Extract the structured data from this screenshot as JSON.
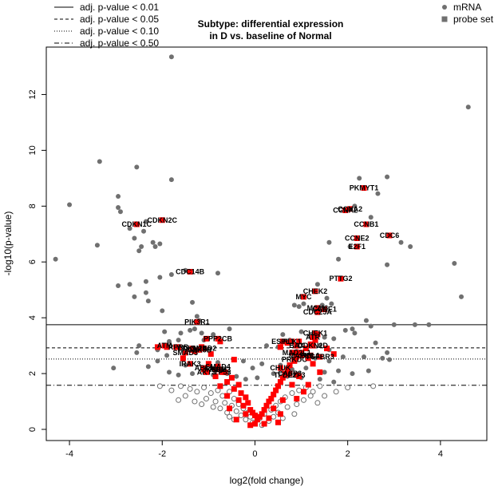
{
  "chart_data": {
    "type": "scatter",
    "title": [
      "Subtype: differential expression",
      "in D vs. baseline of Normal"
    ],
    "xlabel": "log2(fold change)",
    "ylabel": "-log10(p-value)",
    "xlim": [
      -4.5,
      5
    ],
    "ylim": [
      -0.4,
      13.7
    ],
    "xticks": [
      -4,
      -2,
      0,
      2,
      4
    ],
    "yticks": [
      0,
      2,
      4,
      6,
      8,
      10,
      12
    ],
    "grid": false,
    "colors": {
      "mrna": "#707070",
      "probe": "#ff0000",
      "hollow": "#707070"
    },
    "threshold_lines": [
      {
        "label": "adj. p-value < 0.01",
        "y": 3.75,
        "style": "solid"
      },
      {
        "label": "adj. p-value < 0.05",
        "y": 2.92,
        "style": "dashed"
      },
      {
        "label": "adj. p-value < 0.10",
        "y": 2.52,
        "style": "dotted"
      },
      {
        "label": "adj. p-value < 0.50",
        "y": 1.58,
        "style": "dashdot"
      }
    ],
    "marker_legend": [
      {
        "label": "mRNA",
        "shape": "circle"
      },
      {
        "label": "probe set",
        "shape": "square"
      }
    ],
    "mrna_points": [
      [
        -1.8,
        13.35
      ],
      [
        4.6,
        11.55
      ],
      [
        -3.35,
        9.6
      ],
      [
        -2.55,
        9.4
      ],
      [
        2.85,
        9.05
      ],
      [
        -1.8,
        8.95
      ],
      [
        2.25,
        9.0
      ],
      [
        -2.95,
        8.35
      ],
      [
        -4.0,
        8.05
      ],
      [
        -2.95,
        7.95
      ],
      [
        -2.9,
        7.8
      ],
      [
        2.65,
        8.45
      ],
      [
        2.15,
        8.0
      ],
      [
        2.5,
        7.6
      ],
      [
        -2.35,
        7.45
      ],
      [
        -2.7,
        7.2
      ],
      [
        -2.4,
        7.1
      ],
      [
        -2.6,
        6.85
      ],
      [
        -2.2,
        6.7
      ],
      [
        -2.05,
        6.65
      ],
      [
        -2.45,
        6.55
      ],
      [
        -3.4,
        6.6
      ],
      [
        -2.15,
        6.55
      ],
      [
        -2.5,
        6.4
      ],
      [
        -4.3,
        6.1
      ],
      [
        3.15,
        6.7
      ],
      [
        3.35,
        6.55
      ],
      [
        1.6,
        6.7
      ],
      [
        2.05,
        6.55
      ],
      [
        2.85,
        5.9
      ],
      [
        4.3,
        5.95
      ],
      [
        1.8,
        6.1
      ],
      [
        -1.5,
        5.7
      ],
      [
        -1.8,
        5.55
      ],
      [
        -0.8,
        5.6
      ],
      [
        -2.05,
        5.45
      ],
      [
        -2.35,
        5.3
      ],
      [
        -2.7,
        5.2
      ],
      [
        -2.95,
        5.15
      ],
      [
        -2.35,
        4.9
      ],
      [
        -2.6,
        4.75
      ],
      [
        -2.3,
        4.6
      ],
      [
        -1.35,
        4.55
      ],
      [
        1.35,
        5.2
      ],
      [
        1.55,
        4.7
      ],
      [
        1.05,
        4.5
      ],
      [
        0.85,
        4.45
      ],
      [
        0.95,
        4.4
      ],
      [
        1.65,
        4.5
      ],
      [
        1.45,
        4.45
      ],
      [
        -2.0,
        4.25
      ],
      [
        -1.25,
        4.05
      ],
      [
        -1.2,
        3.9
      ],
      [
        4.45,
        4.75
      ],
      [
        2.4,
        3.9
      ],
      [
        3.0,
        3.75
      ],
      [
        3.75,
        3.75
      ],
      [
        1.95,
        3.55
      ],
      [
        2.15,
        3.45
      ],
      [
        2.5,
        3.7
      ],
      [
        2.1,
        3.6
      ],
      [
        -1.95,
        3.5
      ],
      [
        -1.6,
        3.45
      ],
      [
        -1.4,
        3.55
      ],
      [
        -1.3,
        3.6
      ],
      [
        -1.15,
        3.45
      ],
      [
        -0.55,
        3.6
      ],
      [
        -0.9,
        3.4
      ],
      [
        -1.1,
        3.2
      ],
      [
        -1.65,
        3.2
      ],
      [
        -1.85,
        3.15
      ],
      [
        -2.5,
        3.0
      ],
      [
        -2.1,
        2.85
      ],
      [
        -2.55,
        2.75
      ],
      [
        -1.9,
        2.65
      ],
      [
        -2.1,
        2.45
      ],
      [
        -1.55,
        2.5
      ],
      [
        -0.8,
        2.4
      ],
      [
        -3.05,
        2.2
      ],
      [
        -2.3,
        2.25
      ],
      [
        -1.5,
        2.3
      ],
      [
        -1.85,
        2.05
      ],
      [
        -1.65,
        1.95
      ],
      [
        -1.35,
        2.0
      ],
      [
        -0.9,
        1.95
      ],
      [
        -0.6,
        2.0
      ],
      [
        -0.4,
        1.9
      ],
      [
        -0.2,
        1.8
      ],
      [
        0.25,
        3.0
      ],
      [
        0.5,
        2.95
      ],
      [
        0.6,
        3.4
      ],
      [
        0.75,
        3.2
      ],
      [
        1.0,
        3.5
      ],
      [
        1.2,
        3.35
      ],
      [
        1.5,
        3.3
      ],
      [
        1.7,
        3.25
      ],
      [
        1.4,
        3.0
      ],
      [
        1.6,
        2.85
      ],
      [
        0.9,
        2.8
      ],
      [
        1.05,
        2.65
      ],
      [
        1.3,
        2.55
      ],
      [
        1.6,
        2.45
      ],
      [
        1.9,
        2.6
      ],
      [
        0.55,
        2.3
      ],
      [
        0.8,
        2.15
      ],
      [
        1.1,
        2.2
      ],
      [
        1.5,
        2.05
      ],
      [
        1.8,
        2.1
      ],
      [
        0.4,
        2.0
      ],
      [
        0.7,
        1.9
      ],
      [
        1.0,
        1.85
      ],
      [
        1.4,
        1.8
      ],
      [
        1.7,
        1.7
      ],
      [
        2.35,
        2.6
      ],
      [
        2.6,
        3.1
      ],
      [
        2.85,
        2.75
      ],
      [
        2.9,
        2.5
      ],
      [
        2.75,
        2.55
      ],
      [
        2.45,
        2.1
      ],
      [
        2.1,
        2.0
      ],
      [
        3.45,
        3.75
      ],
      [
        -0.25,
        2.45
      ],
      [
        -0.05,
        2.2
      ],
      [
        0.15,
        2.35
      ],
      [
        0.05,
        1.85
      ]
    ],
    "hollow_points": [
      [
        -1.6,
        1.55
      ],
      [
        -1.4,
        1.45
      ],
      [
        -1.25,
        1.35
      ],
      [
        -1.1,
        1.5
      ],
      [
        -0.95,
        1.3
      ],
      [
        -0.8,
        1.4
      ],
      [
        -0.7,
        1.2
      ],
      [
        -0.55,
        1.35
      ],
      [
        -0.45,
        1.1
      ],
      [
        -1.5,
        1.2
      ],
      [
        -1.3,
        1.0
      ],
      [
        -1.05,
        1.1
      ],
      [
        -0.85,
        1.0
      ],
      [
        -0.65,
        0.95
      ],
      [
        -0.5,
        0.85
      ],
      [
        -0.35,
        0.9
      ],
      [
        -0.25,
        0.75
      ],
      [
        -0.4,
        0.65
      ],
      [
        -0.15,
        0.6
      ],
      [
        -0.3,
        0.5
      ],
      [
        -0.1,
        0.45
      ],
      [
        -0.2,
        0.35
      ],
      [
        0.1,
        0.4
      ],
      [
        0.2,
        0.55
      ],
      [
        0.35,
        0.7
      ],
      [
        0.45,
        0.85
      ],
      [
        0.55,
        1.0
      ],
      [
        0.65,
        1.15
      ],
      [
        0.8,
        1.3
      ],
      [
        0.95,
        1.4
      ],
      [
        1.1,
        1.5
      ],
      [
        1.25,
        1.35
      ],
      [
        1.4,
        1.55
      ],
      [
        0.5,
        0.6
      ],
      [
        0.7,
        0.8
      ],
      [
        0.9,
        0.9
      ],
      [
        1.05,
        1.05
      ],
      [
        1.2,
        1.2
      ],
      [
        -1.8,
        1.4
      ],
      [
        -2.05,
        1.55
      ],
      [
        -0.6,
        0.6
      ],
      [
        -0.75,
        0.75
      ],
      [
        0.3,
        0.3
      ],
      [
        -0.05,
        0.25
      ],
      [
        1.5,
        1.2
      ],
      [
        1.35,
        0.95
      ],
      [
        0.85,
        0.55
      ],
      [
        0.6,
        0.4
      ],
      [
        -0.9,
        0.8
      ],
      [
        -1.15,
        0.9
      ],
      [
        1.75,
        1.35
      ],
      [
        2.0,
        1.5
      ],
      [
        2.55,
        1.55
      ],
      [
        -0.45,
        0.35
      ],
      [
        0.15,
        0.15
      ],
      [
        -1.65,
        1.05
      ],
      [
        -0.55,
        0.45
      ],
      [
        0.4,
        0.45
      ]
    ],
    "probe_points": [
      [
        -1.05,
        3.25
      ],
      [
        -0.75,
        3.15
      ],
      [
        -1.3,
        2.8
      ],
      [
        -1.55,
        2.55
      ],
      [
        -1.7,
        2.95
      ],
      [
        -1.15,
        2.95
      ],
      [
        -0.95,
        2.7
      ],
      [
        -0.45,
        2.5
      ],
      [
        -1.0,
        2.35
      ],
      [
        -0.8,
        2.25
      ],
      [
        -0.65,
        2.05
      ],
      [
        -0.5,
        1.85
      ],
      [
        -0.35,
        1.6
      ],
      [
        -0.6,
        1.7
      ],
      [
        -0.45,
        1.45
      ],
      [
        -0.3,
        1.3
      ],
      [
        -0.2,
        1.15
      ],
      [
        -0.35,
        1.05
      ],
      [
        -0.15,
        0.95
      ],
      [
        -0.25,
        0.85
      ],
      [
        -0.1,
        0.7
      ],
      [
        -0.05,
        0.6
      ],
      [
        0.0,
        0.5
      ],
      [
        -0.2,
        0.55
      ],
      [
        0.05,
        0.35
      ],
      [
        0.1,
        0.45
      ],
      [
        0.15,
        0.55
      ],
      [
        0.2,
        0.7
      ],
      [
        0.25,
        0.85
      ],
      [
        0.3,
        1.0
      ],
      [
        0.35,
        1.1
      ],
      [
        0.4,
        1.25
      ],
      [
        0.45,
        1.4
      ],
      [
        0.5,
        1.55
      ],
      [
        0.55,
        1.7
      ],
      [
        0.6,
        1.85
      ],
      [
        0.65,
        2.0
      ],
      [
        0.7,
        2.15
      ],
      [
        0.75,
        2.3
      ],
      [
        0.85,
        2.45
      ],
      [
        0.9,
        2.6
      ],
      [
        1.0,
        2.75
      ],
      [
        1.1,
        2.9
      ],
      [
        1.2,
        3.05
      ],
      [
        1.3,
        3.2
      ],
      [
        1.35,
        3.4
      ],
      [
        0.7,
        3.1
      ],
      [
        0.55,
        2.95
      ],
      [
        0.8,
        2.75
      ],
      [
        0.95,
        3.15
      ],
      [
        1.15,
        2.55
      ],
      [
        1.25,
        2.35
      ],
      [
        0.8,
        1.6
      ],
      [
        0.95,
        1.9
      ],
      [
        1.05,
        1.35
      ],
      [
        0.6,
        1.05
      ],
      [
        0.4,
        0.75
      ],
      [
        0.55,
        0.55
      ],
      [
        0.3,
        0.4
      ],
      [
        -0.4,
        0.35
      ],
      [
        -0.55,
        0.75
      ],
      [
        -0.6,
        1.2
      ],
      [
        -0.75,
        1.55
      ],
      [
        -0.85,
        1.9
      ],
      [
        -1.1,
        2.15
      ],
      [
        0.5,
        0.25
      ],
      [
        0.0,
        0.2
      ],
      [
        -0.1,
        0.15
      ],
      [
        0.2,
        0.2
      ],
      [
        1.15,
        1.6
      ],
      [
        0.9,
        1.1
      ],
      [
        1.4,
        2.05
      ],
      [
        1.7,
        2.7
      ],
      [
        1.55,
        2.9
      ],
      [
        -2.1,
        2.95
      ],
      [
        -1.9,
        2.95
      ],
      [
        -1.35,
        2.85
      ]
    ],
    "labeled_points": [
      {
        "name": "PKMYT1",
        "x": 2.35,
        "y": 8.65
      },
      {
        "name": "CCNA2",
        "x": 1.95,
        "y": 7.85
      },
      {
        "name": "CCNA2",
        "x": 2.05,
        "y": 7.9
      },
      {
        "name": "CCNB1",
        "x": 2.4,
        "y": 7.35
      },
      {
        "name": "CDC6",
        "x": 2.9,
        "y": 6.95
      },
      {
        "name": "CCNE2",
        "x": 2.2,
        "y": 6.85
      },
      {
        "name": "E2F1",
        "x": 2.2,
        "y": 6.55
      },
      {
        "name": "CDKN2C",
        "x": -2.0,
        "y": 7.5
      },
      {
        "name": "CDKN1C",
        "x": -2.55,
        "y": 7.35
      },
      {
        "name": "CDC14B",
        "x": -1.4,
        "y": 5.65
      },
      {
        "name": "PTTG2",
        "x": 1.85,
        "y": 5.4
      },
      {
        "name": "CHEK2",
        "x": 1.3,
        "y": 4.95
      },
      {
        "name": "MYC",
        "x": 1.05,
        "y": 4.75
      },
      {
        "name": "MCM6",
        "x": 1.35,
        "y": 4.35
      },
      {
        "name": "CCNE1",
        "x": 1.5,
        "y": 4.3
      },
      {
        "name": "CDC25A",
        "x": 1.35,
        "y": 4.2
      },
      {
        "name": "PIK3R1",
        "x": -1.25,
        "y": 3.85
      },
      {
        "name": "CHEK1",
        "x": 1.3,
        "y": 3.45
      },
      {
        "name": "ATR",
        "x": 1.25,
        "y": 3.3
      },
      {
        "name": "PPP2CB",
        "x": -0.8,
        "y": 3.25
      },
      {
        "name": "ESPL1",
        "x": 0.6,
        "y": 3.15
      },
      {
        "name": "PLK1",
        "x": 0.8,
        "y": 3.15
      },
      {
        "name": "BAX",
        "x": 0.9,
        "y": 3.0
      },
      {
        "name": "CDKN2D",
        "x": 1.25,
        "y": 3.0
      },
      {
        "name": "SMAD2",
        "x": -1.1,
        "y": 2.9
      },
      {
        "name": "SMAD3",
        "x": -1.5,
        "y": 2.75
      },
      {
        "name": "MAD2L1",
        "x": 0.9,
        "y": 2.75
      },
      {
        "name": "MAPK1",
        "x": 1.0,
        "y": 2.65
      },
      {
        "name": "ATM",
        "x": -1.95,
        "y": 3.0
      },
      {
        "name": "RPRB",
        "x": -1.65,
        "y": 2.95
      },
      {
        "name": "CDKN2B",
        "x": -1.35,
        "y": 2.9
      },
      {
        "name": "GSK3B",
        "x": -1.2,
        "y": 2.85
      },
      {
        "name": "RBL1",
        "x": 1.2,
        "y": 2.65
      },
      {
        "name": "TGFBR3",
        "x": 1.4,
        "y": 2.6
      },
      {
        "name": "PRKDC",
        "x": 0.85,
        "y": 2.5
      },
      {
        "name": "IRAK3",
        "x": -1.4,
        "y": 2.35
      },
      {
        "name": "ABL1",
        "x": -1.1,
        "y": 2.2
      },
      {
        "name": "SMAD4",
        "x": -0.8,
        "y": 2.25
      },
      {
        "name": "MDM2",
        "x": -0.75,
        "y": 2.15
      },
      {
        "name": "IKBKB",
        "x": -0.85,
        "y": 2.15
      },
      {
        "name": "AKT3",
        "x": -1.05,
        "y": 2.05
      },
      {
        "name": "TP53",
        "x": -0.7,
        "y": 2.05
      },
      {
        "name": "CHUK",
        "x": 0.55,
        "y": 2.2
      },
      {
        "name": "CASP3",
        "x": 0.75,
        "y": 2.0
      },
      {
        "name": "TFDP2",
        "x": 0.65,
        "y": 1.95
      },
      {
        "name": "E2F3",
        "x": 0.9,
        "y": 1.95
      }
    ]
  },
  "axis_text": {
    "x_ticks": [
      "-4",
      "-2",
      "0",
      "2",
      "4"
    ],
    "y_ticks": [
      "0",
      "2",
      "4",
      "6",
      "8",
      "10",
      "12"
    ]
  }
}
